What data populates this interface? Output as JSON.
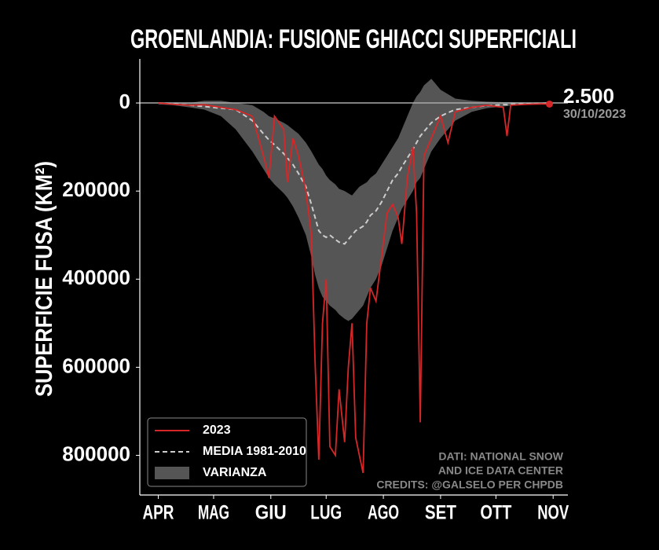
{
  "chart_data": {
    "type": "line",
    "title": "GROENLANDIA: FUSIONE GHIACCI SUPERFICIALI",
    "y_label": "SUPERFICIE FUSA (KM²)",
    "y_inverted": true,
    "xlim": [
      81,
      313
    ],
    "xticks": [
      {
        "value": 91,
        "label": "APR"
      },
      {
        "value": 121,
        "label": "MAG"
      },
      {
        "value": 152,
        "label": "GIU"
      },
      {
        "value": 182,
        "label": "LUG"
      },
      {
        "value": 213,
        "label": "AGO"
      },
      {
        "value": 244,
        "label": "SET"
      },
      {
        "value": 274,
        "label": "OTT"
      },
      {
        "value": 305,
        "label": "NOV"
      }
    ],
    "ylim": [
      -100000,
      890000
    ],
    "yticks": [
      0,
      200000,
      400000,
      600000,
      800000
    ],
    "zero_line": true,
    "x": [
      91,
      99,
      108,
      116,
      125,
      133,
      142,
      148,
      151,
      154,
      159,
      161,
      164,
      167,
      171,
      174,
      176,
      178,
      180,
      182,
      184,
      187,
      189,
      192,
      194,
      196,
      198,
      200,
      202,
      204,
      206,
      209,
      212,
      215,
      218,
      221,
      223,
      226,
      229,
      231,
      233,
      235,
      239,
      244,
      248,
      252,
      261,
      269,
      278,
      280,
      282,
      291,
      299,
      303
    ],
    "series": [
      {
        "name": "2023",
        "color": "#d62728",
        "style": "solid",
        "values": [
          0,
          3000,
          5000,
          4000,
          10000,
          15000,
          30000,
          120000,
          170000,
          30000,
          60000,
          180000,
          80000,
          120000,
          200000,
          300000,
          590000,
          810000,
          500000,
          400000,
          780000,
          800000,
          650000,
          770000,
          600000,
          500000,
          760000,
          800000,
          840000,
          500000,
          420000,
          450000,
          350000,
          250000,
          230000,
          260000,
          320000,
          170000,
          100000,
          250000,
          725000,
          120000,
          80000,
          30000,
          90000,
          20000,
          10000,
          5000,
          10000,
          75000,
          5000,
          3000,
          2000,
          2500
        ]
      },
      {
        "name": "MEDIA 1981-2010",
        "color": "#cccccc",
        "style": "dashed",
        "values": [
          0,
          2000,
          5000,
          8000,
          12000,
          15000,
          40000,
          70000,
          84000,
          95000,
          115000,
          125000,
          140000,
          160000,
          190000,
          230000,
          260000,
          290000,
          300000,
          305000,
          300000,
          310000,
          316000,
          320000,
          310000,
          300000,
          290000,
          285000,
          280000,
          270000,
          255000,
          245000,
          225000,
          200000,
          175000,
          160000,
          145000,
          125000,
          105000,
          90000,
          75000,
          65000,
          45000,
          30000,
          22000,
          15000,
          10000,
          6000,
          4000,
          4000,
          3000,
          2000,
          1000,
          0
        ]
      }
    ],
    "band": {
      "name": "VARIANZA",
      "color": "#555555",
      "lower": [
        0,
        0,
        0,
        -5000,
        -5000,
        0,
        5000,
        20000,
        30000,
        35000,
        45000,
        50000,
        60000,
        70000,
        90000,
        110000,
        125000,
        140000,
        150000,
        165000,
        175000,
        185000,
        195000,
        200000,
        205000,
        210000,
        200000,
        190000,
        185000,
        180000,
        170000,
        160000,
        140000,
        120000,
        100000,
        80000,
        60000,
        30000,
        0,
        -15000,
        -25000,
        -40000,
        -55000,
        -30000,
        -20000,
        -10000,
        -5000,
        -3000,
        -2000,
        -2000,
        -2000,
        -1000,
        0,
        0
      ],
      "upper": [
        3000,
        5000,
        10000,
        15000,
        30000,
        60000,
        110000,
        150000,
        170000,
        185000,
        205000,
        215000,
        235000,
        260000,
        300000,
        350000,
        390000,
        420000,
        440000,
        450000,
        460000,
        470000,
        480000,
        490000,
        495000,
        490000,
        480000,
        470000,
        460000,
        440000,
        420000,
        400000,
        370000,
        330000,
        290000,
        260000,
        240000,
        220000,
        200000,
        180000,
        170000,
        150000,
        110000,
        80000,
        60000,
        40000,
        20000,
        12000,
        8000,
        7000,
        6000,
        4000,
        3000,
        2000
      ]
    },
    "last_value_label": "2.500",
    "last_date_label": "30/10/2023",
    "credits": [
      "DATI: NATIONAL SNOW",
      "AND ICE DATA CENTER",
      "CREDITS: @GALSELO PER CHPDB"
    ],
    "legend": "lower left"
  }
}
